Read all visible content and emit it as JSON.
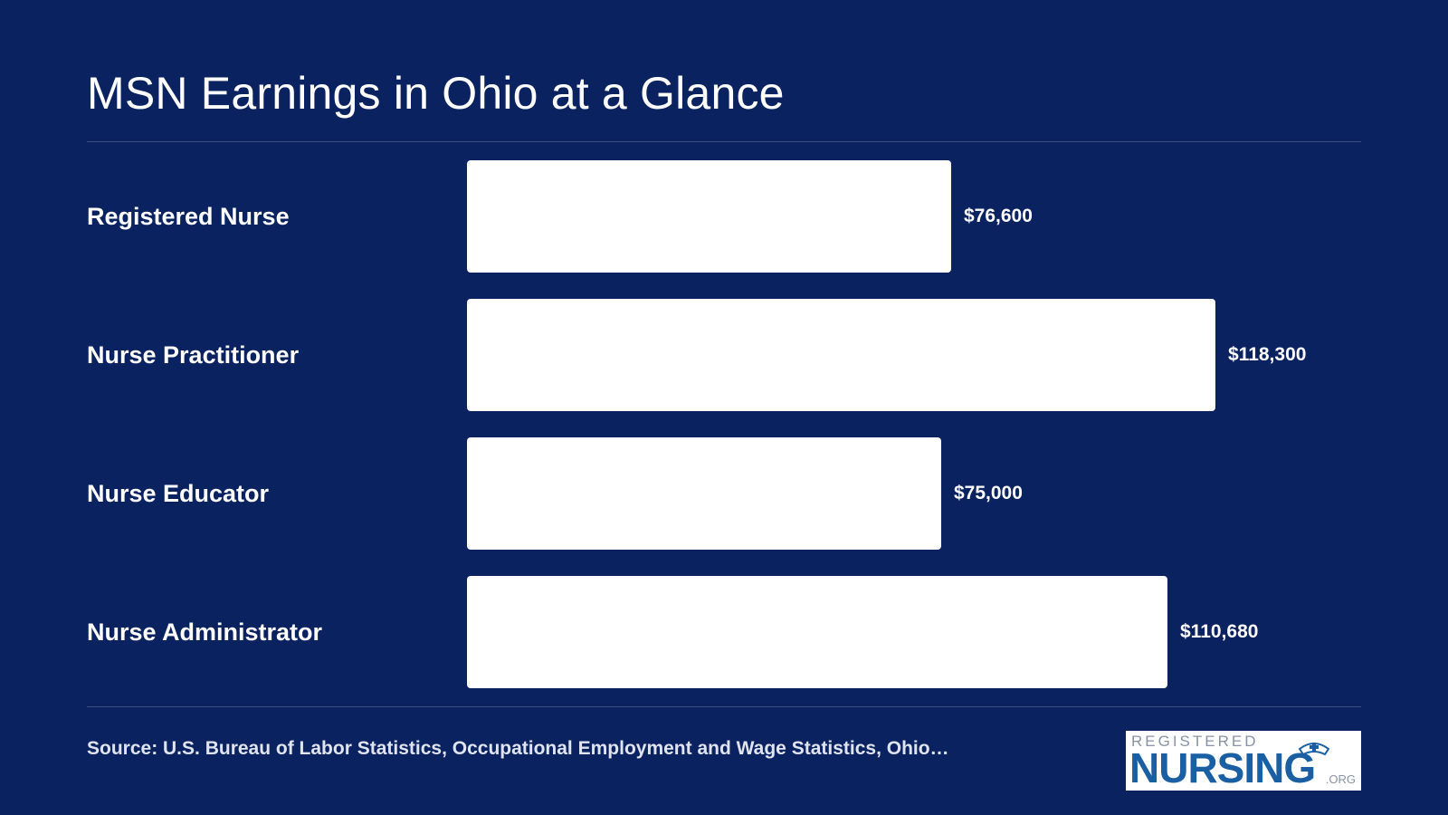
{
  "chart_data": {
    "type": "bar",
    "orientation": "horizontal",
    "title": "MSN Earnings in Ohio at a Glance",
    "categories": [
      "Registered Nurse",
      "Nurse Practitioner",
      "Nurse Educator",
      "Nurse Administrator"
    ],
    "values": [
      76600,
      118300,
      75000,
      110680
    ],
    "value_labels": [
      "$76,600",
      "$118,300",
      "$75,000",
      "$110,680"
    ],
    "xlim": [
      0,
      150000
    ],
    "grid": false,
    "bar_color": "#ffffff",
    "background_color": "#0b2260"
  },
  "footer": {
    "source": "Source: U.S. Bureau of Labor Statistics, Occupational Employment and Wage Statistics, Ohio…"
  },
  "logo": {
    "top_text": "REGISTERED",
    "main_text": "NURSING",
    "suffix_text": ".ORG",
    "icon": "nurse-cap-icon",
    "main_color": "#1a5fa3"
  }
}
